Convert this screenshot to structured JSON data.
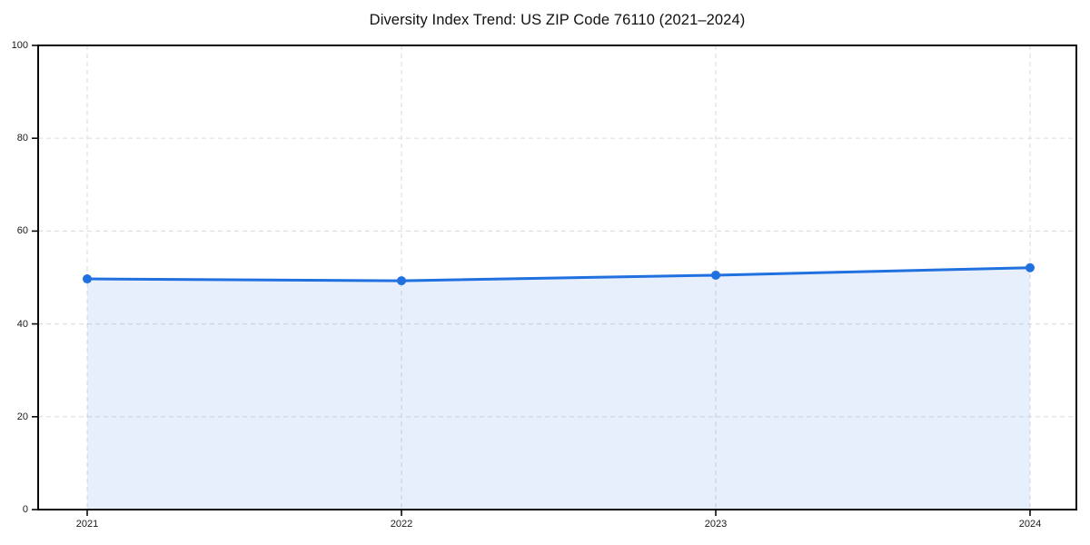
{
  "title": "Diversity Index Trend: US ZIP Code 76110 (2021–2024)",
  "colors": {
    "line": "#2070e0",
    "marker": "#2070e0",
    "area_fill": "rgba(32, 112, 224, 0.11)",
    "grid": "#e0e0e0",
    "spine": "#0a0a0a",
    "tick_text": "#1a1a1a",
    "title_text": "#111111",
    "background": "#ffffff"
  },
  "chart_data": {
    "type": "line",
    "title": "Diversity Index Trend: US ZIP Code 76110 (2021–2024)",
    "categories": [
      "2021",
      "2022",
      "2023",
      "2024"
    ],
    "x": [
      2021,
      2022,
      2023,
      2024
    ],
    "series": [
      {
        "name": "Diversity Index",
        "values": [
          49.7,
          49.3,
          50.5,
          52.1
        ]
      }
    ],
    "xlabel": "",
    "ylabel": "",
    "ylim": [
      0,
      100
    ],
    "yticks": [
      0,
      20,
      40,
      60,
      80,
      100
    ],
    "grid": true,
    "grid_style": "dashed",
    "legend": "none",
    "marker": "circle",
    "area_fill_to_zero": true
  }
}
